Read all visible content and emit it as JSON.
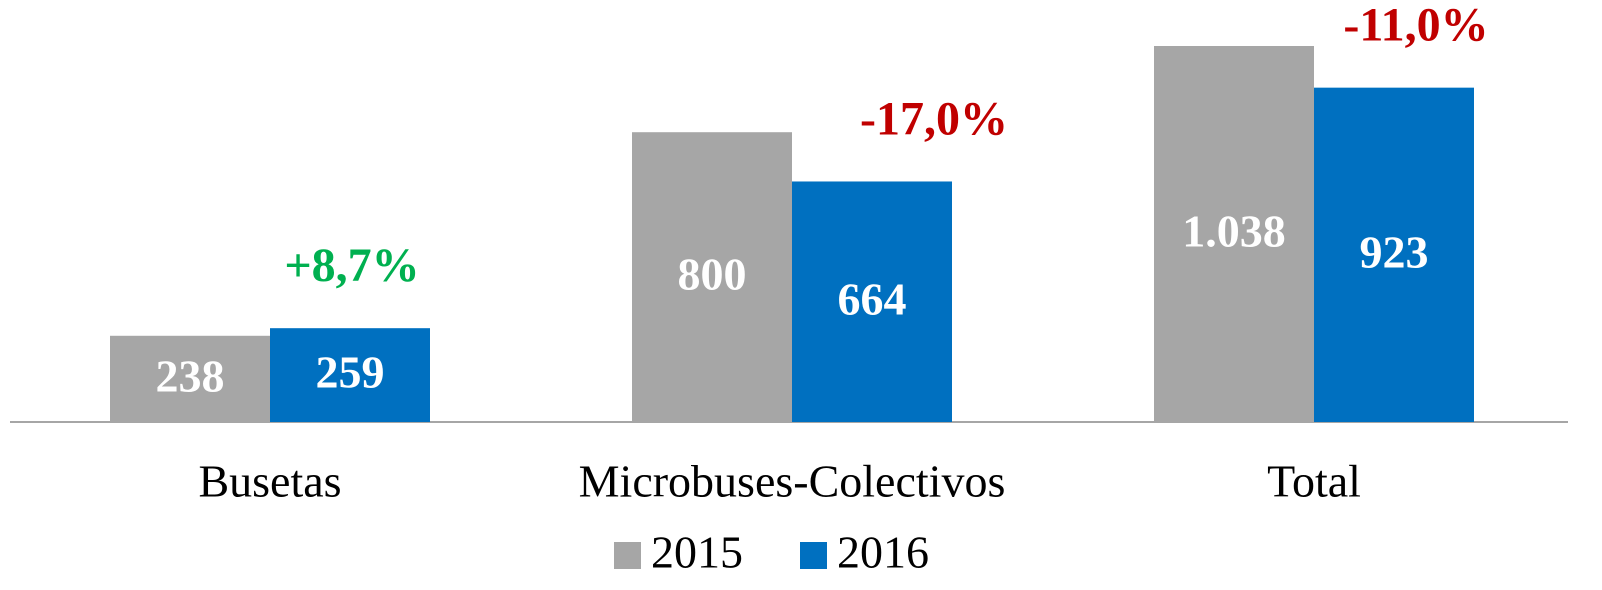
{
  "chart_data": {
    "type": "bar",
    "categories": [
      "Busetas",
      "Microbuses-Colectivos",
      "Total"
    ],
    "series": [
      {
        "name": "2015",
        "color": "#a6a6a6",
        "values": [
          238,
          800,
          1038
        ],
        "value_labels": [
          "238",
          "800",
          "1.038"
        ]
      },
      {
        "name": "2016",
        "color": "#0070c0",
        "values": [
          259,
          664,
          923
        ],
        "value_labels": [
          "259",
          "664",
          "923"
        ]
      }
    ],
    "annotations": [
      {
        "text": "+8,7%",
        "color": "#00b050"
      },
      {
        "text": "-17,0%",
        "color": "#c00000"
      },
      {
        "text": "-11,0%",
        "color": "#c00000"
      }
    ]
  }
}
